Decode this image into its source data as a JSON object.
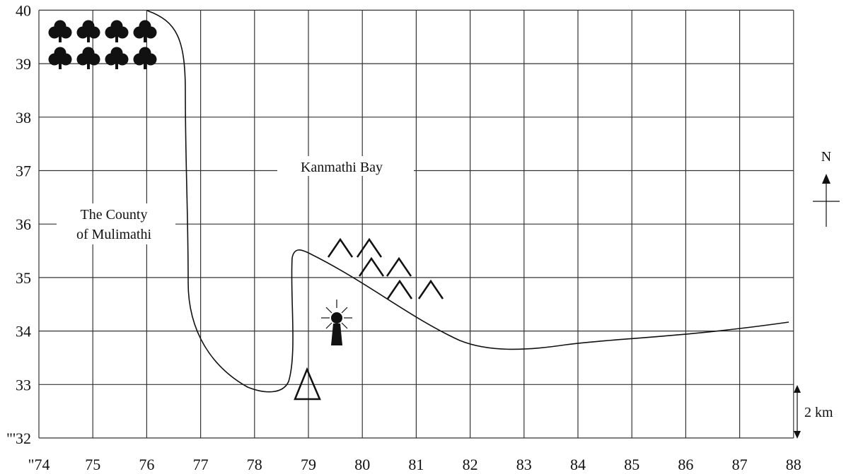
{
  "map": {
    "grid": {
      "eastings": [
        "74",
        "75",
        "76",
        "77",
        "78",
        "79",
        "80",
        "81",
        "82",
        "83",
        "84",
        "85",
        "86",
        "87",
        "88"
      ],
      "northings": [
        "32",
        "33",
        "34",
        "35",
        "36",
        "37",
        "38",
        "39",
        "40"
      ],
      "easting_prefix": "\"",
      "northing_prefix": "\"'"
    },
    "labels": {
      "bay": "Kanmathi Bay",
      "county_line1": "The County",
      "county_line2": "of Mulimathi"
    },
    "north_arrow": {
      "label": "N"
    },
    "scale": {
      "label": "2 km"
    },
    "symbols": {
      "forest": {
        "icon": "club-tree-icon",
        "rows": 2,
        "cols": 4
      },
      "hills": {
        "icon": "hill-caret-icon",
        "count": 6
      },
      "lighthouse": {
        "icon": "lighthouse-icon"
      },
      "trig_point": {
        "icon": "triangle-icon"
      }
    }
  }
}
